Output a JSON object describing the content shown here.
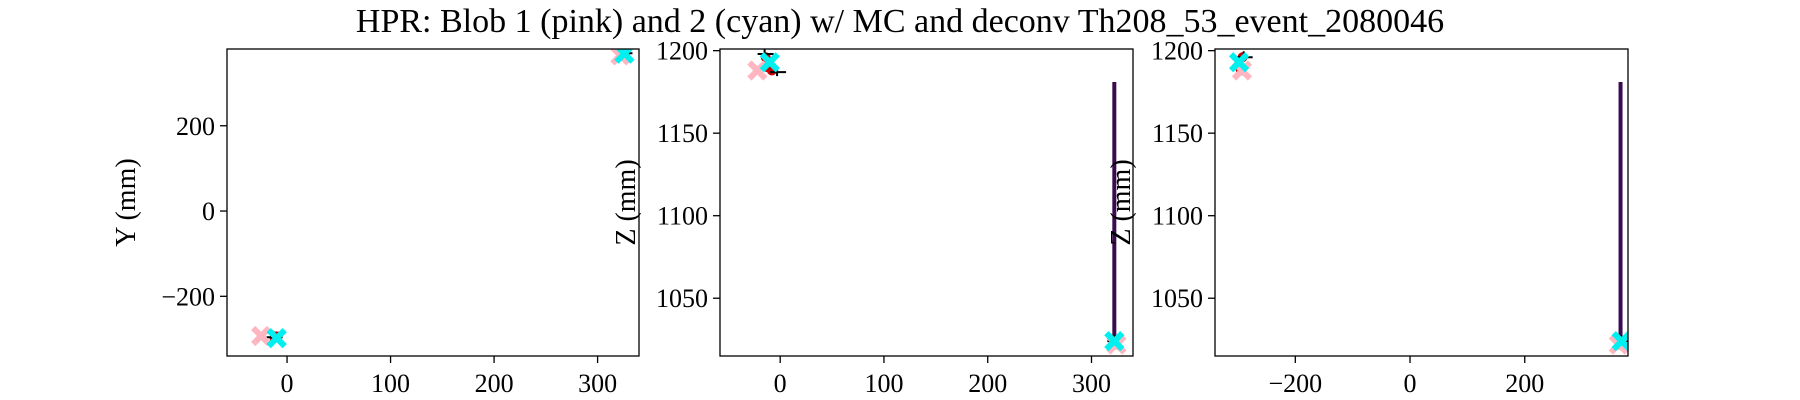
{
  "title": "HPR: Blob 1 (pink) and 2 (cyan) w/ MC and deconv Th208_53_event_2080046",
  "colors": {
    "blob1": "#ffb6c1",
    "blob2": "#00f0f0",
    "track": "#3b0a4f",
    "mc": "#cc0000",
    "deconv": "#000000"
  },
  "chart_data": [
    {
      "type": "scatter",
      "ylabel": "Y (mm)",
      "xlabel": "",
      "xlim": [
        -58,
        340
      ],
      "ylim": [
        -340,
        380
      ],
      "xticks": [
        0,
        100,
        200,
        300
      ],
      "yticks": [
        -200,
        0,
        200
      ],
      "tracks": [],
      "mc_points": [
        [
          -12,
          -298
        ],
        [
          -10,
          -294
        ],
        [
          326,
          368
        ]
      ],
      "deconv_points": [
        [
          -13,
          -296
        ],
        [
          325,
          370
        ]
      ],
      "blob1": [
        [
          -25,
          -293
        ],
        [
          322,
          365
        ]
      ],
      "blob2": [
        [
          -10,
          -298
        ],
        [
          326,
          369
        ]
      ]
    },
    {
      "type": "scatter",
      "ylabel": "Z (mm)",
      "xlabel": "",
      "xlim": [
        -58,
        340
      ],
      "ylim": [
        1015,
        1201
      ],
      "xticks": [
        0,
        100,
        200,
        300
      ],
      "yticks": [
        1050,
        1100,
        1150,
        1200
      ],
      "tracks": [
        [
          [
            322,
            1023
          ],
          [
            322,
            1181
          ]
        ]
      ],
      "mc_points": [
        [
          -12,
          1190
        ],
        [
          -8,
          1188
        ],
        [
          -14,
          1196
        ],
        [
          323,
          1022
        ]
      ],
      "deconv_points": [
        [
          -15,
          1198
        ],
        [
          -3,
          1187
        ],
        [
          322,
          1024
        ]
      ],
      "blob1": [
        [
          -22,
          1188
        ],
        [
          324,
          1022
        ]
      ],
      "blob2": [
        [
          -10,
          1193
        ],
        [
          322,
          1024
        ]
      ]
    },
    {
      "type": "scatter",
      "ylabel": "Z (mm)",
      "xlabel": "",
      "xlim": [
        -340,
        380
      ],
      "ylim": [
        1015,
        1201
      ],
      "xticks": [
        -200,
        0,
        200
      ],
      "yticks": [
        1050,
        1100,
        1150,
        1200
      ],
      "tracks": [
        [
          [
            367,
            1023
          ],
          [
            367,
            1181
          ]
        ]
      ],
      "mc_points": [
        [
          -295,
          1188
        ],
        [
          -292,
          1196
        ],
        [
          365,
          1022
        ]
      ],
      "deconv_points": [
        [
          -290,
          1196
        ],
        [
          368,
          1024
        ]
      ],
      "blob1": [
        [
          -293,
          1188
        ],
        [
          364,
          1022
        ]
      ],
      "blob2": [
        [
          -298,
          1193
        ],
        [
          369,
          1024
        ]
      ]
    }
  ]
}
